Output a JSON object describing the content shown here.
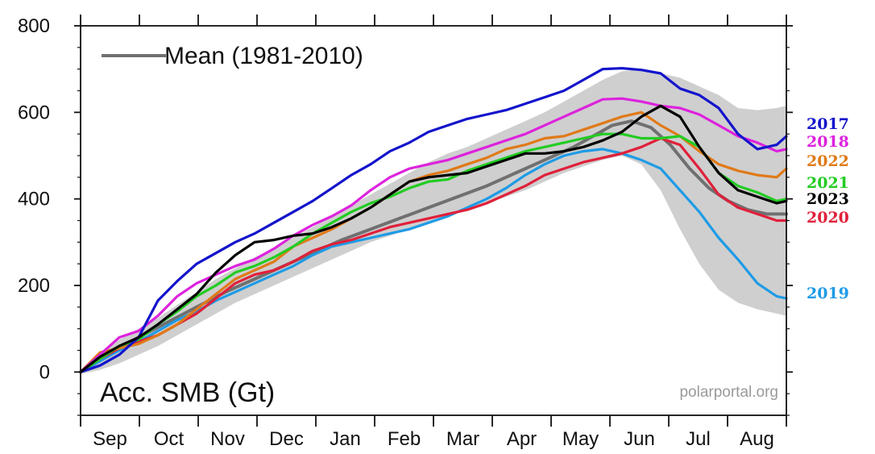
{
  "chart_data": {
    "type": "line",
    "title": "Acc. SMB (Gt)",
    "xlabel": "",
    "ylabel": "",
    "source": "polarportal.org",
    "legend": {
      "line_label": "Mean (1981-2010)",
      "placement": "top-left"
    },
    "months": [
      "Sep",
      "Oct",
      "Nov",
      "Dec",
      "Jan",
      "Feb",
      "Mar",
      "Apr",
      "May",
      "Jun",
      "Jul",
      "Aug"
    ],
    "x_unit": "days since Sep 1",
    "xlim": [
      0,
      365
    ],
    "ylim": [
      -100,
      800
    ],
    "yticks": [
      0,
      200,
      400,
      600,
      800
    ],
    "colors": {
      "band": "#cfcfcf",
      "mean": "#707070",
      "2017": "#1414cc",
      "2018": "#dd22dd",
      "2022": "#e07a18",
      "2021": "#22cc22",
      "2023": "#000000",
      "2020": "#e0203a",
      "2019": "#1e9be6"
    },
    "band": {
      "name": "1981-2010 range",
      "x": [
        0,
        10,
        20,
        30,
        40,
        50,
        60,
        70,
        80,
        90,
        100,
        110,
        120,
        130,
        140,
        150,
        160,
        170,
        180,
        190,
        200,
        210,
        220,
        230,
        240,
        250,
        260,
        270,
        280,
        290,
        300,
        310,
        320,
        330,
        340,
        350,
        360,
        365
      ],
      "upper": [
        5,
        40,
        75,
        100,
        125,
        155,
        185,
        215,
        240,
        265,
        285,
        310,
        335,
        360,
        385,
        410,
        435,
        460,
        485,
        505,
        520,
        540,
        560,
        580,
        600,
        625,
        650,
        675,
        695,
        700,
        690,
        680,
        660,
        640,
        610,
        605,
        610,
        615
      ],
      "lower": [
        -5,
        5,
        20,
        40,
        60,
        85,
        110,
        135,
        160,
        180,
        200,
        220,
        240,
        260,
        280,
        300,
        315,
        330,
        345,
        360,
        375,
        390,
        405,
        420,
        440,
        460,
        475,
        490,
        500,
        480,
        420,
        330,
        250,
        190,
        160,
        145,
        135,
        130
      ]
    },
    "series": [
      {
        "name": "Mean (1981-2010)",
        "x": [
          0,
          15,
          30,
          45,
          60,
          75,
          90,
          105,
          120,
          135,
          150,
          165,
          180,
          195,
          210,
          225,
          240,
          255,
          265,
          275,
          285,
          295,
          305,
          315,
          325,
          335,
          345,
          355,
          365
        ],
        "y": [
          0,
          40,
          80,
          115,
          150,
          185,
          215,
          245,
          275,
          305,
          330,
          355,
          380,
          405,
          430,
          460,
          490,
          520,
          545,
          570,
          580,
          565,
          525,
          470,
          425,
          395,
          375,
          365,
          365
        ]
      },
      {
        "name": "2017",
        "label": "2017",
        "x": [
          0,
          10,
          20,
          30,
          40,
          50,
          60,
          70,
          80,
          90,
          100,
          110,
          120,
          130,
          140,
          150,
          160,
          170,
          180,
          190,
          200,
          210,
          220,
          230,
          240,
          250,
          260,
          270,
          280,
          290,
          300,
          310,
          320,
          330,
          340,
          350,
          360,
          365
        ],
        "y": [
          0,
          15,
          40,
          80,
          165,
          210,
          250,
          275,
          300,
          320,
          345,
          370,
          395,
          425,
          455,
          480,
          510,
          530,
          555,
          570,
          585,
          595,
          605,
          620,
          635,
          650,
          675,
          700,
          702,
          698,
          690,
          655,
          640,
          610,
          550,
          515,
          525,
          545
        ]
      },
      {
        "name": "2018",
        "label": "2018",
        "x": [
          0,
          10,
          20,
          30,
          40,
          50,
          60,
          70,
          80,
          90,
          100,
          110,
          120,
          130,
          140,
          150,
          160,
          170,
          180,
          190,
          200,
          210,
          220,
          230,
          240,
          250,
          260,
          270,
          280,
          290,
          300,
          310,
          320,
          330,
          340,
          350,
          360,
          365
        ],
        "y": [
          0,
          40,
          80,
          95,
          130,
          175,
          205,
          225,
          245,
          260,
          285,
          315,
          340,
          360,
          385,
          420,
          450,
          470,
          480,
          490,
          505,
          520,
          535,
          550,
          570,
          590,
          610,
          630,
          632,
          625,
          615,
          610,
          595,
          570,
          545,
          530,
          510,
          515
        ]
      },
      {
        "name": "2022",
        "label": "2022",
        "x": [
          0,
          10,
          20,
          30,
          40,
          50,
          60,
          70,
          80,
          90,
          100,
          110,
          120,
          130,
          140,
          150,
          160,
          170,
          180,
          190,
          200,
          210,
          220,
          230,
          240,
          250,
          260,
          270,
          280,
          290,
          300,
          310,
          320,
          330,
          340,
          350,
          360,
          365
        ],
        "y": [
          0,
          45,
          55,
          65,
          85,
          110,
          145,
          180,
          215,
          235,
          255,
          290,
          310,
          330,
          355,
          380,
          410,
          440,
          455,
          465,
          480,
          495,
          515,
          525,
          540,
          545,
          560,
          575,
          590,
          600,
          570,
          545,
          510,
          480,
          465,
          455,
          450,
          470
        ]
      },
      {
        "name": "2021",
        "label": "2021",
        "x": [
          0,
          10,
          20,
          30,
          40,
          50,
          60,
          70,
          80,
          90,
          100,
          110,
          120,
          130,
          140,
          150,
          160,
          170,
          180,
          190,
          200,
          210,
          220,
          230,
          240,
          250,
          260,
          270,
          280,
          290,
          300,
          310,
          320,
          330,
          340,
          350,
          360,
          365
        ],
        "y": [
          0,
          30,
          60,
          75,
          110,
          140,
          175,
          200,
          230,
          245,
          265,
          290,
          320,
          345,
          370,
          390,
          405,
          425,
          440,
          445,
          465,
          480,
          495,
          510,
          520,
          530,
          540,
          550,
          550,
          540,
          540,
          545,
          520,
          460,
          430,
          415,
          395,
          400
        ]
      },
      {
        "name": "2023",
        "label": "2023",
        "x": [
          0,
          10,
          20,
          30,
          40,
          50,
          60,
          70,
          80,
          90,
          100,
          110,
          120,
          130,
          140,
          150,
          160,
          170,
          180,
          190,
          200,
          210,
          220,
          230,
          240,
          250,
          260,
          270,
          280,
          290,
          300,
          310,
          320,
          330,
          340,
          350,
          360,
          365
        ],
        "y": [
          0,
          35,
          60,
          80,
          110,
          145,
          180,
          230,
          270,
          300,
          305,
          315,
          320,
          335,
          355,
          380,
          410,
          440,
          450,
          455,
          460,
          475,
          490,
          505,
          505,
          510,
          520,
          535,
          555,
          590,
          615,
          590,
          520,
          460,
          420,
          405,
          390,
          395
        ]
      },
      {
        "name": "2020",
        "label": "2020",
        "x": [
          0,
          10,
          20,
          30,
          40,
          50,
          60,
          70,
          80,
          90,
          100,
          110,
          120,
          130,
          140,
          150,
          160,
          170,
          180,
          190,
          200,
          210,
          220,
          230,
          240,
          250,
          260,
          270,
          280,
          290,
          300,
          310,
          320,
          330,
          340,
          350,
          360,
          365
        ],
        "y": [
          0,
          30,
          55,
          70,
          85,
          110,
          135,
          170,
          205,
          225,
          235,
          255,
          280,
          295,
          305,
          320,
          335,
          345,
          355,
          365,
          375,
          390,
          410,
          430,
          455,
          470,
          485,
          495,
          505,
          520,
          540,
          525,
          470,
          410,
          380,
          365,
          350,
          350
        ]
      },
      {
        "name": "2019",
        "label": "2019",
        "x": [
          0,
          10,
          20,
          30,
          40,
          50,
          60,
          70,
          80,
          90,
          100,
          110,
          120,
          130,
          140,
          150,
          160,
          170,
          180,
          190,
          200,
          210,
          220,
          230,
          240,
          250,
          260,
          270,
          280,
          290,
          300,
          310,
          320,
          330,
          340,
          350,
          360,
          365
        ],
        "y": [
          0,
          25,
          50,
          70,
          95,
          120,
          140,
          165,
          185,
          205,
          225,
          245,
          270,
          290,
          300,
          310,
          320,
          330,
          345,
          360,
          380,
          400,
          425,
          455,
          480,
          500,
          510,
          515,
          505,
          490,
          470,
          420,
          370,
          310,
          260,
          205,
          175,
          170
        ]
      }
    ]
  }
}
